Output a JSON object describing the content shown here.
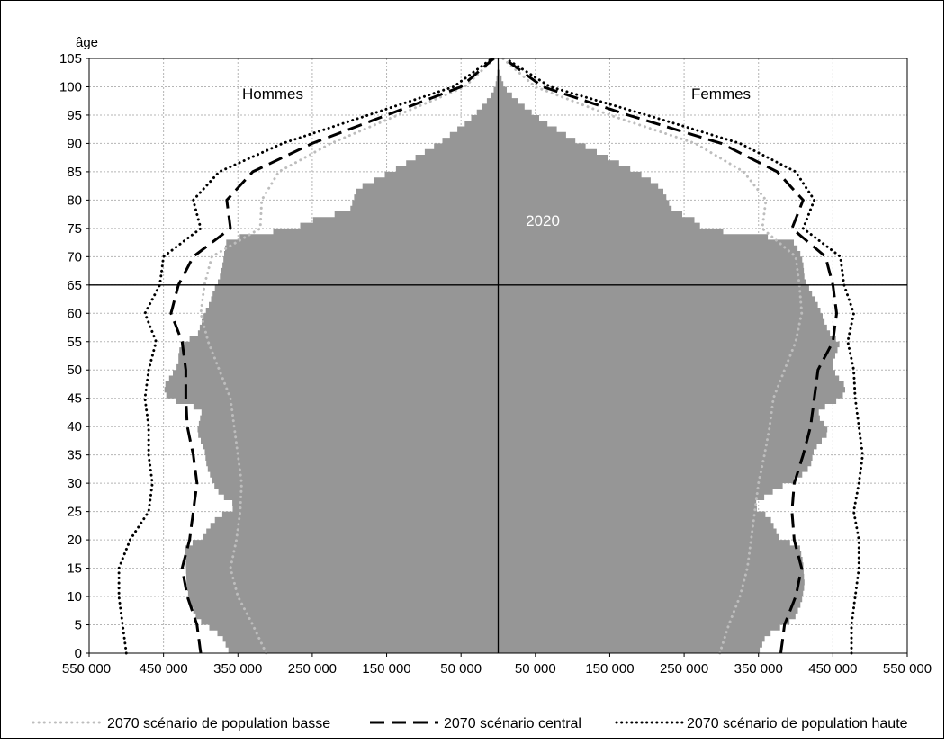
{
  "chart_data": {
    "type": "area",
    "title": "",
    "ylabel": "âge",
    "xlabel": "",
    "xlim": [
      -550000,
      550000
    ],
    "ylim": [
      0,
      105
    ],
    "grid": true,
    "xticks": [
      -550000,
      -450000,
      -350000,
      -250000,
      -150000,
      -50000,
      50000,
      150000,
      250000,
      350000,
      450000,
      550000
    ],
    "xtick_labels": [
      "550 000",
      "450 000",
      "350 000",
      "250 000",
      "150 000",
      "50 000",
      "50 000",
      "150 000",
      "250 000",
      "350 000",
      "450 000",
      "550 000"
    ],
    "yticks": [
      0,
      5,
      10,
      15,
      20,
      25,
      30,
      35,
      40,
      45,
      50,
      55,
      60,
      65,
      70,
      75,
      80,
      85,
      90,
      95,
      100,
      105
    ],
    "ytick_labels": [
      "0",
      "5",
      "10",
      "15",
      "20",
      "25",
      "30",
      "35",
      "40",
      "45",
      "50",
      "55",
      "60",
      "65",
      "70",
      "75",
      "80",
      "85",
      "90",
      "95",
      "100",
      "105"
    ],
    "reference_line_age": 65,
    "annotations": {
      "men": "Hommes",
      "women": "Femmes",
      "year": "2020"
    },
    "legend_position": "bottom",
    "ages": [
      0,
      5,
      10,
      15,
      20,
      25,
      30,
      35,
      40,
      45,
      50,
      55,
      60,
      65,
      70,
      75,
      80,
      85,
      90,
      95,
      100,
      105
    ],
    "pyramid_2020": {
      "name": "2020",
      "color": "#969696",
      "men_profile": [
        [
          0,
          361000
        ],
        [
          3,
          372000
        ],
        [
          6,
          405000
        ],
        [
          9,
          415000
        ],
        [
          12,
          419000
        ],
        [
          16,
          420000
        ],
        [
          19,
          422000
        ],
        [
          20,
          400000
        ],
        [
          22,
          390000
        ],
        [
          24,
          378000
        ],
        [
          26,
          350000
        ],
        [
          27,
          365000
        ],
        [
          29,
          380000
        ],
        [
          31,
          386000
        ],
        [
          33,
          392000
        ],
        [
          36,
          395000
        ],
        [
          39,
          405000
        ],
        [
          42,
          400000
        ],
        [
          43,
          398000
        ],
        [
          45,
          445000
        ],
        [
          47,
          450000
        ],
        [
          49,
          440000
        ],
        [
          51,
          430000
        ],
        [
          53,
          430000
        ],
        [
          55,
          425000
        ],
        [
          56,
          405000
        ],
        [
          58,
          400000
        ],
        [
          60,
          395000
        ],
        [
          62,
          387000
        ],
        [
          64,
          383000
        ],
        [
          66,
          375000
        ],
        [
          69,
          370000
        ],
        [
          71,
          368000
        ],
        [
          73,
          365000
        ],
        [
          74,
          330000
        ],
        [
          75,
          275000
        ],
        [
          77,
          240000
        ],
        [
          78,
          200000
        ],
        [
          80,
          195000
        ],
        [
          82,
          190000
        ],
        [
          84,
          160000
        ],
        [
          86,
          130000
        ],
        [
          88,
          105000
        ],
        [
          90,
          80000
        ],
        [
          92,
          60000
        ],
        [
          94,
          40000
        ],
        [
          96,
          25000
        ],
        [
          98,
          12000
        ],
        [
          100,
          4000
        ],
        [
          103,
          600
        ],
        [
          105,
          0
        ]
      ],
      "women_profile": [
        [
          0,
          350000
        ],
        [
          3,
          360000
        ],
        [
          6,
          398000
        ],
        [
          9,
          408000
        ],
        [
          12,
          412000
        ],
        [
          16,
          410000
        ],
        [
          19,
          405000
        ],
        [
          20,
          380000
        ],
        [
          22,
          372000
        ],
        [
          24,
          365000
        ],
        [
          26,
          342000
        ],
        [
          27,
          352000
        ],
        [
          29,
          375000
        ],
        [
          31,
          405000
        ],
        [
          33,
          420000
        ],
        [
          36,
          425000
        ],
        [
          39,
          445000
        ],
        [
          42,
          430000
        ],
        [
          43,
          432000
        ],
        [
          45,
          462000
        ],
        [
          47,
          468000
        ],
        [
          49,
          455000
        ],
        [
          51,
          448000
        ],
        [
          53,
          455000
        ],
        [
          55,
          460000
        ],
        [
          56,
          448000
        ],
        [
          58,
          440000
        ],
        [
          60,
          435000
        ],
        [
          62,
          428000
        ],
        [
          64,
          420000
        ],
        [
          66,
          412000
        ],
        [
          69,
          410000
        ],
        [
          71,
          405000
        ],
        [
          73,
          395000
        ],
        [
          74,
          330000
        ],
        [
          75,
          275000
        ],
        [
          77,
          260000
        ],
        [
          78,
          235000
        ],
        [
          80,
          228000
        ],
        [
          82,
          220000
        ],
        [
          84,
          200000
        ],
        [
          86,
          170000
        ],
        [
          88,
          140000
        ],
        [
          90,
          110000
        ],
        [
          92,
          85000
        ],
        [
          94,
          60000
        ],
        [
          96,
          40000
        ],
        [
          98,
          22000
        ],
        [
          100,
          8000
        ],
        [
          103,
          1200
        ],
        [
          105,
          0
        ]
      ]
    },
    "series": [
      {
        "name": "2070 scénario de population basse",
        "style": "dotted-light",
        "color": "#bdbdbd",
        "men_profile": [
          [
            0,
            312000
          ],
          [
            5,
            330000
          ],
          [
            10,
            350000
          ],
          [
            15,
            360000
          ],
          [
            20,
            352000
          ],
          [
            25,
            347000
          ],
          [
            30,
            345000
          ],
          [
            35,
            350000
          ],
          [
            40,
            355000
          ],
          [
            45,
            360000
          ],
          [
            50,
            375000
          ],
          [
            55,
            390000
          ],
          [
            60,
            400000
          ],
          [
            65,
            395000
          ],
          [
            70,
            385000
          ],
          [
            75,
            320000
          ],
          [
            80,
            318000
          ],
          [
            85,
            295000
          ],
          [
            90,
            225000
          ],
          [
            95,
            135000
          ],
          [
            100,
            45000
          ],
          [
            105,
            5000
          ]
        ],
        "women_profile": [
          [
            0,
            298000
          ],
          [
            5,
            310000
          ],
          [
            10,
            325000
          ],
          [
            15,
            335000
          ],
          [
            20,
            340000
          ],
          [
            25,
            345000
          ],
          [
            30,
            350000
          ],
          [
            35,
            358000
          ],
          [
            40,
            365000
          ],
          [
            45,
            370000
          ],
          [
            50,
            385000
          ],
          [
            55,
            400000
          ],
          [
            60,
            408000
          ],
          [
            65,
            405000
          ],
          [
            70,
            400000
          ],
          [
            75,
            355000
          ],
          [
            80,
            360000
          ],
          [
            85,
            330000
          ],
          [
            90,
            265000
          ],
          [
            95,
            150000
          ],
          [
            100,
            50000
          ],
          [
            105,
            6000
          ]
        ]
      },
      {
        "name": "2070 scénario central",
        "style": "dashed",
        "color": "#000000",
        "men_profile": [
          [
            0,
            400000
          ],
          [
            5,
            405000
          ],
          [
            10,
            418000
          ],
          [
            15,
            425000
          ],
          [
            20,
            415000
          ],
          [
            25,
            410000
          ],
          [
            30,
            405000
          ],
          [
            35,
            410000
          ],
          [
            40,
            418000
          ],
          [
            45,
            420000
          ],
          [
            50,
            420000
          ],
          [
            55,
            425000
          ],
          [
            60,
            440000
          ],
          [
            65,
            430000
          ],
          [
            70,
            410000
          ],
          [
            75,
            360000
          ],
          [
            80,
            365000
          ],
          [
            85,
            330000
          ],
          [
            90,
            250000
          ],
          [
            95,
            150000
          ],
          [
            100,
            50000
          ],
          [
            105,
            6000
          ]
        ],
        "women_profile": [
          [
            0,
            380000
          ],
          [
            5,
            385000
          ],
          [
            10,
            400000
          ],
          [
            15,
            408000
          ],
          [
            20,
            398000
          ],
          [
            25,
            395000
          ],
          [
            30,
            398000
          ],
          [
            35,
            410000
          ],
          [
            40,
            420000
          ],
          [
            45,
            425000
          ],
          [
            50,
            430000
          ],
          [
            55,
            450000
          ],
          [
            60,
            455000
          ],
          [
            65,
            450000
          ],
          [
            70,
            440000
          ],
          [
            75,
            395000
          ],
          [
            80,
            410000
          ],
          [
            85,
            375000
          ],
          [
            90,
            300000
          ],
          [
            95,
            175000
          ],
          [
            100,
            60000
          ],
          [
            105,
            8000
          ]
        ]
      },
      {
        "name": "2070 scénario de population haute",
        "style": "dotted",
        "color": "#000000",
        "men_profile": [
          [
            0,
            500000
          ],
          [
            5,
            505000
          ],
          [
            10,
            510000
          ],
          [
            15,
            510000
          ],
          [
            20,
            495000
          ],
          [
            25,
            470000
          ],
          [
            30,
            465000
          ],
          [
            35,
            470000
          ],
          [
            40,
            470000
          ],
          [
            45,
            475000
          ],
          [
            50,
            470000
          ],
          [
            55,
            460000
          ],
          [
            60,
            475000
          ],
          [
            65,
            455000
          ],
          [
            70,
            450000
          ],
          [
            75,
            400000
          ],
          [
            80,
            410000
          ],
          [
            85,
            375000
          ],
          [
            90,
            290000
          ],
          [
            95,
            175000
          ],
          [
            100,
            60000
          ],
          [
            105,
            8000
          ]
        ],
        "women_profile": [
          [
            0,
            475000
          ],
          [
            5,
            475000
          ],
          [
            10,
            480000
          ],
          [
            15,
            485000
          ],
          [
            20,
            485000
          ],
          [
            25,
            478000
          ],
          [
            30,
            485000
          ],
          [
            35,
            490000
          ],
          [
            40,
            485000
          ],
          [
            45,
            480000
          ],
          [
            50,
            478000
          ],
          [
            55,
            470000
          ],
          [
            60,
            478000
          ],
          [
            65,
            465000
          ],
          [
            70,
            460000
          ],
          [
            75,
            410000
          ],
          [
            80,
            425000
          ],
          [
            85,
            400000
          ],
          [
            90,
            325000
          ],
          [
            95,
            200000
          ],
          [
            100,
            70000
          ],
          [
            105,
            10000
          ]
        ]
      }
    ]
  }
}
